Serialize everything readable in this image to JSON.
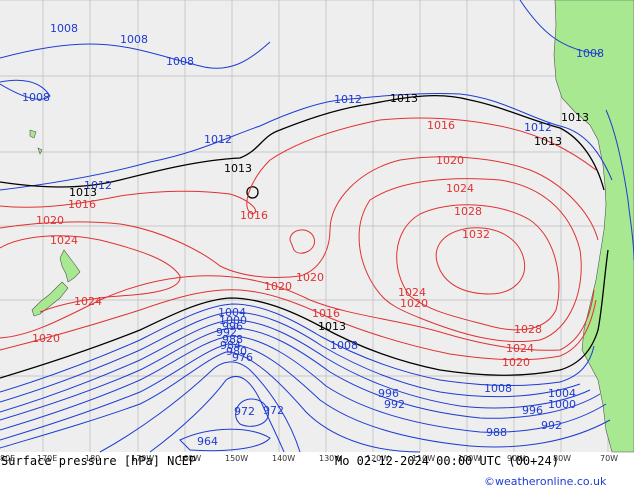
{
  "footer": {
    "left_title": "Surface pressure [hPa] NCEP",
    "run_time": "Mo 02-12-2024 00:00 UTC (00+24)",
    "credit": "©weatheronline.co.uk"
  },
  "colors": {
    "sea": "#eeeeee",
    "land": "#a8e890",
    "low_isobar": "#1e3cd2",
    "high_isobar": "#e03232",
    "standard_isobar": "#000000"
  },
  "longitude_ticks": [
    "80E",
    "170E",
    "180",
    "170W",
    "160W",
    "150W",
    "140W",
    "130W",
    "120W",
    "110W",
    "100W",
    "90W",
    "80W",
    "70W"
  ],
  "isobar_labels": [
    {
      "text": "1008",
      "kind": "low"
    },
    {
      "text": "1008",
      "kind": "low"
    },
    {
      "text": "1008",
      "kind": "low"
    },
    {
      "text": "1008",
      "kind": "low"
    },
    {
      "text": "1008",
      "kind": "low"
    },
    {
      "text": "1012",
      "kind": "low"
    },
    {
      "text": "1012",
      "kind": "low"
    },
    {
      "text": "1012",
      "kind": "low"
    },
    {
      "text": "1012",
      "kind": "low"
    },
    {
      "text": "1013",
      "kind": "standard"
    },
    {
      "text": "1013",
      "kind": "standard"
    },
    {
      "text": "1013",
      "kind": "standard"
    },
    {
      "text": "1013",
      "kind": "standard"
    },
    {
      "text": "1013",
      "kind": "standard"
    },
    {
      "text": "1013",
      "kind": "standard"
    },
    {
      "text": "1016",
      "kind": "high"
    },
    {
      "text": "1016",
      "kind": "high"
    },
    {
      "text": "1016",
      "kind": "high"
    },
    {
      "text": "1016",
      "kind": "high"
    },
    {
      "text": "1020",
      "kind": "high"
    },
    {
      "text": "1020",
      "kind": "high"
    },
    {
      "text": "1020",
      "kind": "high"
    },
    {
      "text": "1020",
      "kind": "high"
    },
    {
      "text": "1020",
      "kind": "high"
    },
    {
      "text": "1020",
      "kind": "high"
    },
    {
      "text": "1020",
      "kind": "high"
    },
    {
      "text": "1024",
      "kind": "high"
    },
    {
      "text": "1024",
      "kind": "high"
    },
    {
      "text": "1024",
      "kind": "high"
    },
    {
      "text": "1024",
      "kind": "high"
    },
    {
      "text": "1024",
      "kind": "high"
    },
    {
      "text": "1028",
      "kind": "high"
    },
    {
      "text": "1028",
      "kind": "high"
    },
    {
      "text": "1032",
      "kind": "high"
    },
    {
      "text": "1004",
      "kind": "low"
    },
    {
      "text": "1000",
      "kind": "low"
    },
    {
      "text": "996",
      "kind": "low"
    },
    {
      "text": "992",
      "kind": "low"
    },
    {
      "text": "988",
      "kind": "low"
    },
    {
      "text": "984",
      "kind": "low"
    },
    {
      "text": "980",
      "kind": "low"
    },
    {
      "text": "976",
      "kind": "low"
    },
    {
      "text": "1008",
      "kind": "low"
    },
    {
      "text": "1008",
      "kind": "low"
    },
    {
      "text": "1004",
      "kind": "low"
    },
    {
      "text": "1000",
      "kind": "low"
    },
    {
      "text": "996",
      "kind": "low"
    },
    {
      "text": "996",
      "kind": "low"
    },
    {
      "text": "992",
      "kind": "low"
    },
    {
      "text": "992",
      "kind": "low"
    },
    {
      "text": "988",
      "kind": "low"
    },
    {
      "text": "972",
      "kind": "low"
    },
    {
      "text": "972",
      "kind": "low"
    },
    {
      "text": "964",
      "kind": "low"
    }
  ]
}
